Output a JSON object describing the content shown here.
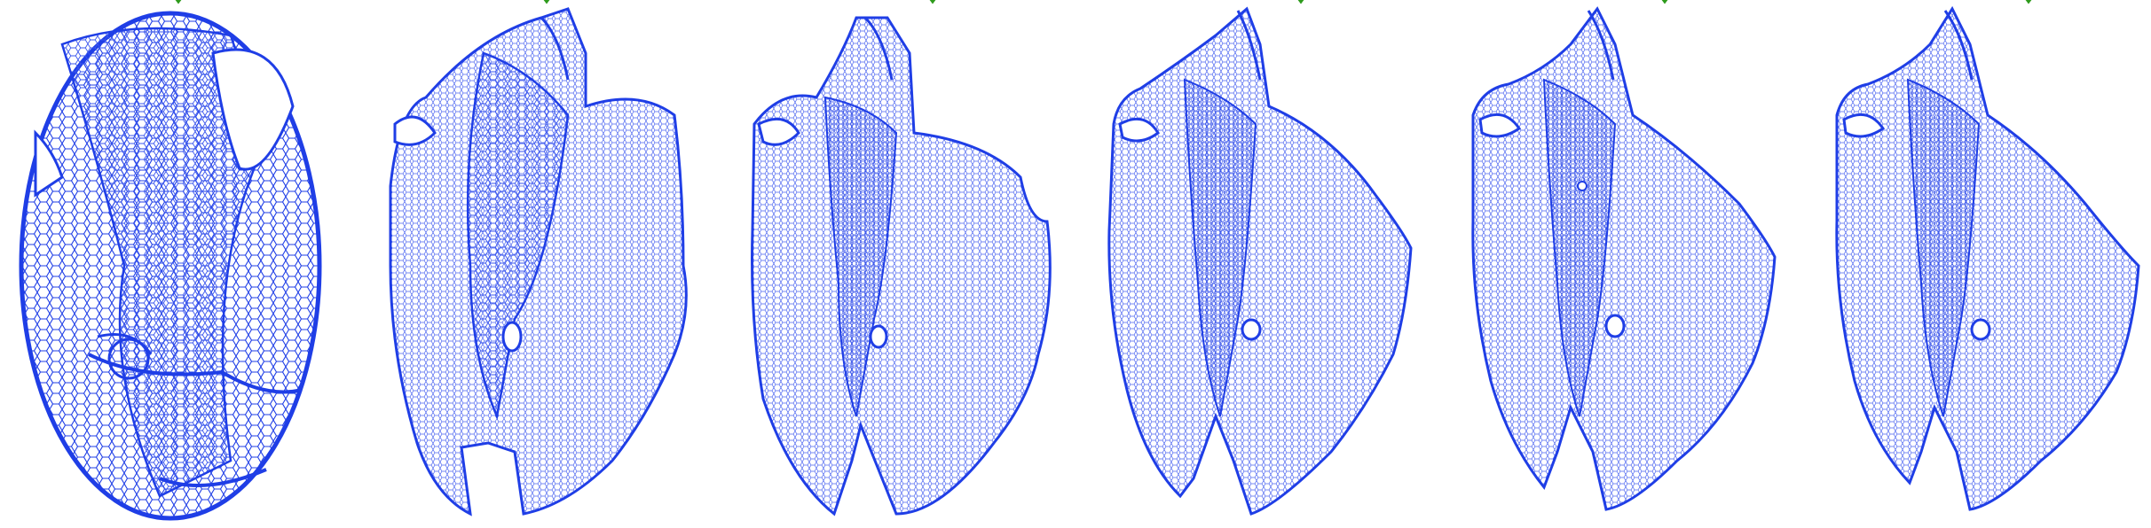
{
  "figure": {
    "panel_count": 6,
    "mesh_color": "#1f3ee6",
    "mesh_color_light": "#4a63f0",
    "caption_color": "#2e9b1c",
    "background": "#ffffff"
  },
  "panels": [
    {
      "id": 1,
      "shape": "ellipsoid-initial"
    },
    {
      "id": 2,
      "shape": "deformed-stage-1"
    },
    {
      "id": 3,
      "shape": "deformed-stage-2"
    },
    {
      "id": 4,
      "shape": "deformed-stage-3"
    },
    {
      "id": 5,
      "shape": "deformed-stage-4"
    },
    {
      "id": 6,
      "shape": "deformed-final"
    }
  ]
}
